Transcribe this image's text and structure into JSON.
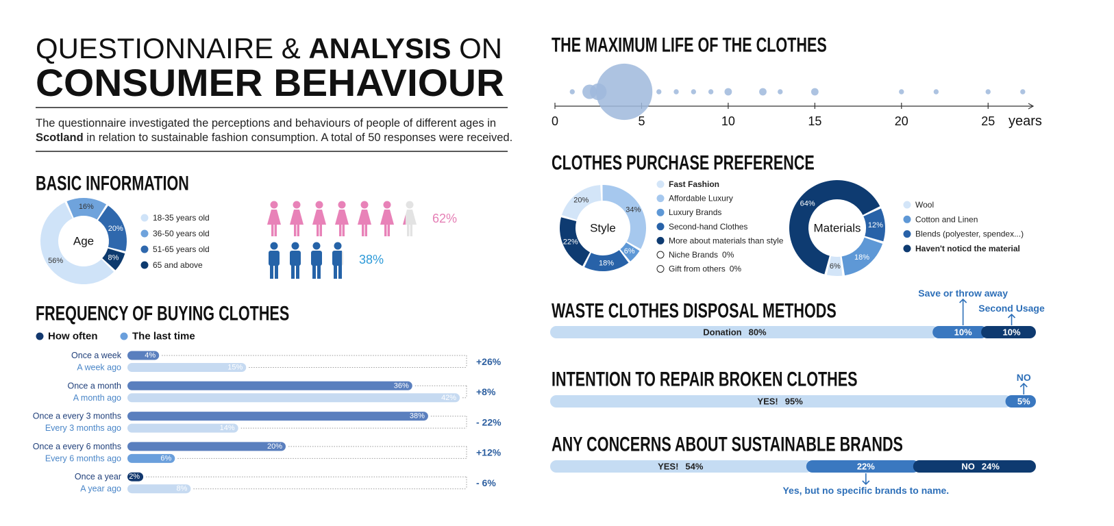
{
  "header": {
    "title_line1": [
      "QUESTIONNAIRE &",
      "ANALYSIS",
      "ON"
    ],
    "title_line2": "CONSUMER BEHAVIOUR",
    "intro": [
      "The questionnaire investigated the perceptions and behaviours of people of different ages in",
      "Scotland",
      "in relation to sustainable fashion consumption. A total of 50 responses were received."
    ]
  },
  "chart_data": [
    {
      "type": "donut",
      "title": "BASIC INFORMATION",
      "center_label": "Age",
      "categories": [
        "18-35 years old",
        "36-50 years old",
        "51-65 years old",
        "65 and above"
      ],
      "values": [
        56,
        16,
        20,
        8
      ],
      "value_labels": [
        "56%",
        "16%",
        "20%",
        "8%"
      ],
      "colors": [
        "#cfe3f8",
        "#6fa3dc",
        "#2f68ad",
        "#0d3a6e"
      ],
      "start_angle": 134,
      "clockwise": true
    },
    {
      "type": "pictogram",
      "values": [
        62,
        38
      ],
      "value_labels": [
        "62%",
        "38%"
      ],
      "icons": [
        "female",
        "male"
      ],
      "colors": [
        "#e882b8",
        "#2563a8"
      ],
      "label_colors": [
        "#e57fb5",
        "#2d9ad8"
      ]
    },
    {
      "type": "paired_bar",
      "title": "FREQUENCY OF BUYING CLOTHES",
      "series": [
        {
          "name": "How often",
          "color": "#12386e",
          "labels": [
            "Once a week",
            "Once a month",
            "Once a every 3 months",
            "Once a every 6 months",
            "Once a year"
          ],
          "values": [
            4,
            36,
            38,
            20,
            2
          ],
          "value_labels": [
            "4%",
            "36%",
            "38%",
            "20%",
            "2%"
          ],
          "colors": [
            "#5a7fbe",
            "#5a7fbe",
            "#5a7fbe",
            "#5a7fbe",
            "#12386e"
          ]
        },
        {
          "name": "The last time",
          "color": "#6a9fdc",
          "labels": [
            "A week ago",
            "A month ago",
            "Every 3 months ago",
            "Every 6 months ago",
            "A year ago"
          ],
          "values": [
            15,
            42,
            14,
            6,
            8
          ],
          "value_labels": [
            "15%",
            "42%",
            "14%",
            "6%",
            "8%"
          ],
          "colors": [
            "#c6daf1",
            "#c6daf1",
            "#c6daf1",
            "#6a9fdc",
            "#c6daf1"
          ]
        }
      ],
      "annotations": [
        "+26%",
        "+8%",
        "- 22%",
        "+12%",
        "- 6%"
      ]
    },
    {
      "type": "bubble",
      "title": "THE MAXIMUM LIFE OF THE CLOTHES",
      "x": [
        1,
        2,
        2.5,
        4,
        6,
        7,
        8,
        9,
        10,
        12,
        13,
        15,
        20,
        22,
        25,
        27
      ],
      "sizes": [
        1,
        5,
        6,
        23,
        1,
        1,
        1,
        1,
        2,
        2,
        1,
        2,
        1,
        1,
        1,
        1
      ],
      "xlim": [
        0,
        27.6
      ],
      "xticks": [
        0,
        5,
        10,
        15,
        20,
        25
      ],
      "xlabel": "years",
      "color": "#9fb9dc"
    },
    {
      "type": "donut",
      "title": "CLOTHES PURCHASE PREFERENCE",
      "center_label": "Style",
      "categories": [
        "Fast Fashion",
        "Affordable Luxury",
        "Luxury Brands",
        "Second-hand Clothes",
        "More about materials than style",
        "Niche Brands",
        "Gift from others"
      ],
      "values": [
        20,
        34,
        6,
        18,
        22,
        0,
        0
      ],
      "value_labels": [
        "20%",
        "34%",
        "6%",
        "18%",
        "22%",
        "0%",
        "0%"
      ],
      "colors": [
        "#d3e5f8",
        "#a6c8ee",
        "#5e98d6",
        "#2862a8",
        "#0e3b71",
        "#ffffff",
        "#ffffff"
      ],
      "start_angle": 286,
      "clockwise": true,
      "emphasis": [
        0
      ]
    },
    {
      "type": "donut",
      "center_label": "Materials",
      "categories": [
        "Wool",
        "Cotton and Linen",
        "Blends (polyester, spendex...)",
        "Haven't noticd the material"
      ],
      "values": [
        6,
        18,
        12,
        64
      ],
      "value_labels": [
        "6%",
        "18%",
        "12%",
        "64%"
      ],
      "colors": [
        "#d3e5f8",
        "#5e98d6",
        "#2862a8",
        "#0e3b71"
      ],
      "start_angle": 194,
      "clockwise": false,
      "emphasis": [
        3
      ]
    },
    {
      "type": "stacked_bar",
      "title": "WASTE CLOTHES DISPOSAL METHODS",
      "categories": [
        "Donation",
        "Save or throw away",
        "Second Usage"
      ],
      "values": [
        80,
        10,
        10
      ],
      "value_labels": [
        "80%",
        "10%",
        "10%"
      ],
      "colors": [
        "#c5dcf3",
        "#3a78c0",
        "#0e3a70"
      ],
      "label_position": [
        "inside",
        "above",
        "above"
      ]
    },
    {
      "type": "stacked_bar",
      "title": "INTENTION TO REPAIR BROKEN CLOTHES",
      "categories": [
        "YES!",
        "NO"
      ],
      "values": [
        95,
        5
      ],
      "value_labels": [
        "95%",
        "5%"
      ],
      "colors": [
        "#c5dcf3",
        "#3a78c0"
      ],
      "label_position": [
        "inside",
        "above"
      ]
    },
    {
      "type": "stacked_bar",
      "title": "ANY CONCERNS ABOUT SUSTAINABLE BRANDS",
      "categories": [
        "YES!",
        "Yes, but no specific brands to name.",
        "NO"
      ],
      "values": [
        54,
        22,
        24
      ],
      "value_labels": [
        "54%",
        "22%",
        "24%"
      ],
      "colors": [
        "#c5dcf3",
        "#3a78c0",
        "#0e3a70"
      ],
      "label_position": [
        "inside",
        "below",
        "inside"
      ]
    }
  ]
}
